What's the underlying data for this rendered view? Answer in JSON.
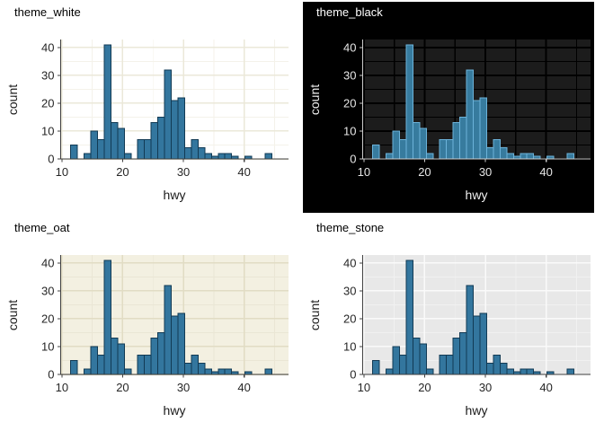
{
  "page": {
    "background": "#ffffff"
  },
  "figure": {
    "layout": "2x2 grid of histograms, same data, four themes",
    "xlabel": "hwy",
    "ylabel": "count",
    "x_major_ticks": [
      10,
      20,
      30,
      40
    ],
    "x_minor_ticks": [
      15,
      25,
      35,
      45
    ],
    "y_major_ticks": [
      0,
      10,
      20,
      30,
      40
    ],
    "y_minor_ticks": [
      5,
      15,
      25,
      35
    ],
    "xlim": [
      9.8,
      47.3
    ],
    "ylim": [
      0,
      42.9
    ],
    "grid": "major and minor gridlines on",
    "legend": "none"
  },
  "chart_data": [
    {
      "type": "bar",
      "subtype": "histogram",
      "title": "theme_white",
      "xlabel": "hwy",
      "ylabel": "count",
      "bin_start": 11.45,
      "bin_width": 1.1034,
      "counts": [
        5,
        0,
        2,
        10,
        7,
        41,
        13,
        11,
        2,
        0,
        7,
        7,
        13,
        15,
        32,
        21,
        22,
        4,
        7,
        4,
        2,
        1,
        2,
        2,
        1,
        0,
        1,
        0,
        0,
        2
      ],
      "xlim": [
        9.8,
        47.3
      ],
      "ylim": [
        0,
        42.9
      ],
      "theme": {
        "outer_bg": "#ffffff",
        "panel_bg": "#ffffff",
        "grid_major": "#ebe8d9",
        "grid_minor": "#f4f2ea",
        "grid_major_w": 1.5,
        "grid_minor_w": 0.9,
        "axis_color": "#404040",
        "tick_text_color": "#262626",
        "axis_title_color": "#1a1a1a",
        "title_color": "#000000",
        "bar_fill": "#33769e",
        "bar_stroke": "#123a54"
      }
    },
    {
      "type": "bar",
      "subtype": "histogram",
      "title": "theme_black",
      "xlabel": "hwy",
      "ylabel": "count",
      "bin_start": 11.45,
      "bin_width": 1.1034,
      "counts": [
        5,
        0,
        2,
        10,
        7,
        41,
        13,
        11,
        2,
        0,
        7,
        7,
        13,
        15,
        32,
        21,
        22,
        4,
        7,
        4,
        2,
        1,
        2,
        2,
        1,
        0,
        1,
        0,
        0,
        2
      ],
      "xlim": [
        9.8,
        47.3
      ],
      "ylim": [
        0,
        42.9
      ],
      "theme": {
        "outer_bg": "#000000",
        "panel_bg": "#1c1c1c",
        "grid_major": "#000000",
        "grid_minor": "#000000",
        "grid_major_w": 2,
        "grid_minor_w": 1.4,
        "axis_color": "#cccccc",
        "tick_text_color": "#e6e6e6",
        "axis_title_color": "#f0f0f0",
        "title_color": "#ffffff",
        "bar_fill": "#377b9e",
        "bar_stroke": "#6cb3da"
      }
    },
    {
      "type": "bar",
      "subtype": "histogram",
      "title": "theme_oat",
      "xlabel": "hwy",
      "ylabel": "count",
      "bin_start": 11.45,
      "bin_width": 1.1034,
      "counts": [
        5,
        0,
        2,
        10,
        7,
        41,
        13,
        11,
        2,
        0,
        7,
        7,
        13,
        15,
        32,
        21,
        22,
        4,
        7,
        4,
        2,
        1,
        2,
        2,
        1,
        0,
        1,
        0,
        0,
        2
      ],
      "xlim": [
        9.8,
        47.3
      ],
      "ylim": [
        0,
        42.9
      ],
      "theme": {
        "outer_bg": "#ffffff",
        "panel_bg": "#f3f0e1",
        "grid_major": "#e1dcc4",
        "grid_minor": "#eae6d5",
        "grid_major_w": 1.5,
        "grid_minor_w": 0.9,
        "axis_color": "#404040",
        "tick_text_color": "#262626",
        "axis_title_color": "#1a1a1a",
        "title_color": "#000000",
        "bar_fill": "#33769e",
        "bar_stroke": "#123a54"
      }
    },
    {
      "type": "bar",
      "subtype": "histogram",
      "title": "theme_stone",
      "xlabel": "hwy",
      "ylabel": "count",
      "bin_start": 11.45,
      "bin_width": 1.1034,
      "counts": [
        5,
        0,
        2,
        10,
        7,
        41,
        13,
        11,
        2,
        0,
        7,
        7,
        13,
        15,
        32,
        21,
        22,
        4,
        7,
        4,
        2,
        1,
        2,
        2,
        1,
        0,
        1,
        0,
        0,
        2
      ],
      "xlim": [
        9.8,
        47.3
      ],
      "ylim": [
        0,
        42.9
      ],
      "theme": {
        "outer_bg": "#ffffff",
        "panel_bg": "#e8e8e8",
        "grid_major": "#fafafa",
        "grid_minor": "#f1f1f1",
        "grid_major_w": 1.5,
        "grid_minor_w": 0.9,
        "axis_color": "#404040",
        "tick_text_color": "#262626",
        "axis_title_color": "#1a1a1a",
        "title_color": "#000000",
        "bar_fill": "#33769e",
        "bar_stroke": "#123a54"
      }
    }
  ]
}
